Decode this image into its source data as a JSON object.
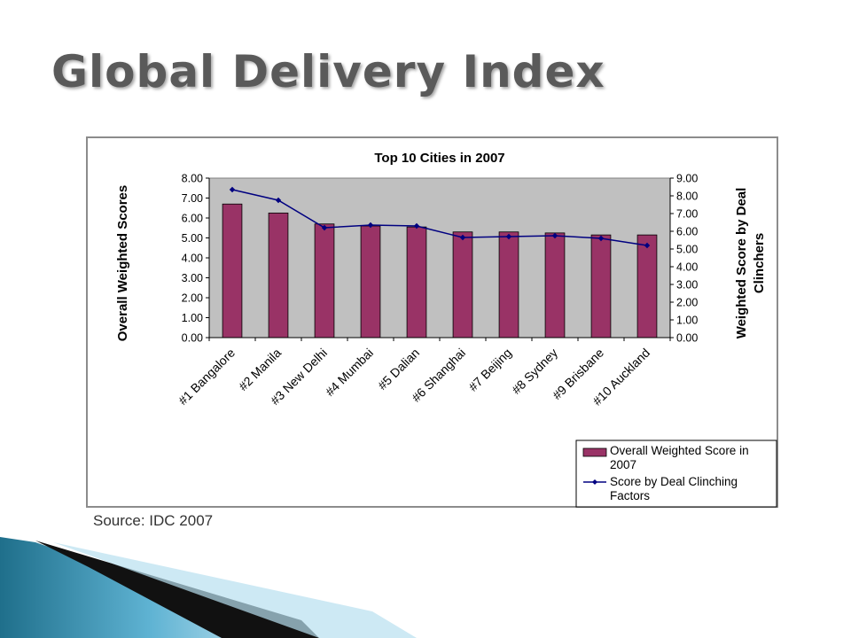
{
  "slide": {
    "title": "Global Delivery Index",
    "source": "Source: IDC 2007"
  },
  "colors": {
    "bar": "#993366",
    "line": "#000080",
    "plot_bg": "#c0c0c0"
  },
  "chart_data": {
    "type": "bar",
    "title": "Top 10 Cities in 2007",
    "ylabel": "Overall Weighted Scores",
    "y2label": "Weighted Score by Deal Clinchers",
    "categories": [
      "#1 Bangalore",
      "#2 Manila",
      "#3 New Delhi",
      "#4 Mumbai",
      "#5 Dalian",
      "#6 Shanghai",
      "#7 Beijing",
      "#8 Sydney",
      "#9 Brisbane",
      "#10 Auckland"
    ],
    "ylim": [
      0,
      8
    ],
    "yticks": [
      "0.00",
      "1.00",
      "2.00",
      "3.00",
      "4.00",
      "5.00",
      "6.00",
      "7.00",
      "8.00"
    ],
    "y2lim": [
      0,
      9
    ],
    "y2ticks": [
      "0.00",
      "1.00",
      "2.00",
      "3.00",
      "4.00",
      "5.00",
      "6.00",
      "7.00",
      "8.00",
      "9.00"
    ],
    "series": [
      {
        "name": "Overall Weighted Score in 2007",
        "type": "bar",
        "axis": "left",
        "values": [
          6.7,
          6.25,
          5.7,
          5.6,
          5.55,
          5.3,
          5.3,
          5.25,
          5.15,
          5.15
        ]
      },
      {
        "name": "Score by Deal Clinching Factors",
        "type": "line",
        "axis": "right",
        "values": [
          8.35,
          7.75,
          6.2,
          6.35,
          6.3,
          5.65,
          5.7,
          5.75,
          5.6,
          5.2
        ]
      }
    ],
    "legend_position": "bottom-right"
  }
}
